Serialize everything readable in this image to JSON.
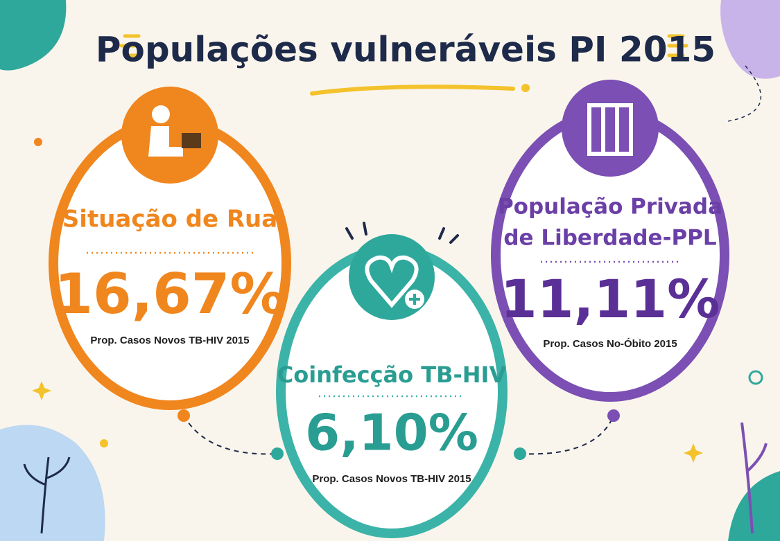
{
  "header": {
    "title": "Populações vulneráveis PI 2015"
  },
  "cards": [
    {
      "title": [
        "Situação de Rua"
      ],
      "value": "16,67%",
      "note": "Prop. Casos Novos TB-HIV 2015"
    },
    {
      "title": [
        "Coinfecção TB-HIV"
      ],
      "value": "6,10%",
      "note": "Prop. Casos Novos TB-HIV 2015"
    },
    {
      "title": [
        "População Privada",
        "de Liberdade-PPL"
      ],
      "value": "11,11%",
      "note": "Prop. Casos No-Óbito 2015"
    }
  ]
}
